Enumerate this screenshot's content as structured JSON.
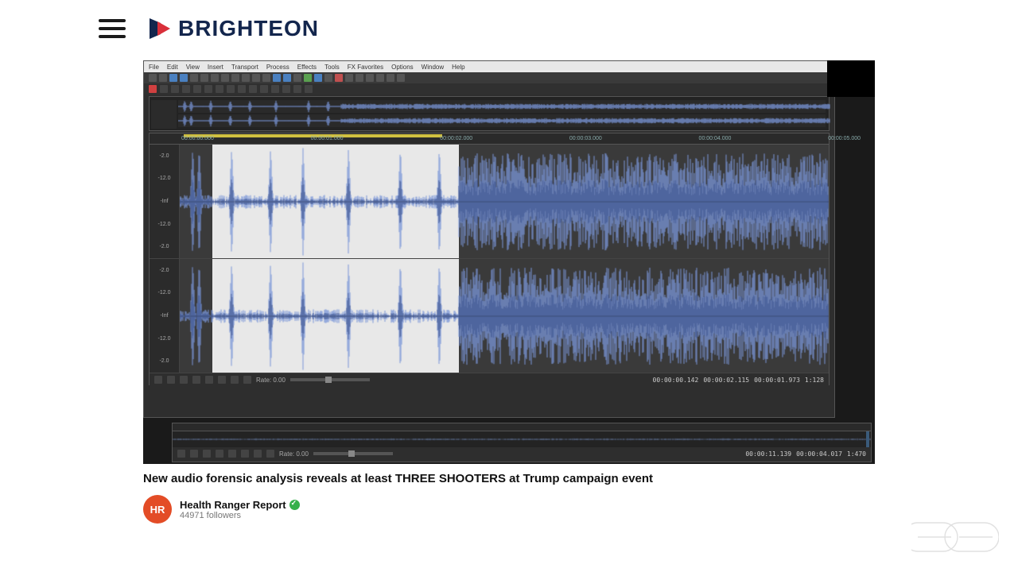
{
  "site": {
    "brand": "BRIGHTEON",
    "brand_color_primary": "#13264d",
    "brand_color_accent": "#d92f3a"
  },
  "video": {
    "title": "New audio forensic analysis reveals at least THREE SHOOTERS at Trump campaign event",
    "channel": {
      "initials": "HR",
      "name": "Health Ranger Report",
      "followers_label": "44971 followers",
      "avatar_color": "#e34c26",
      "verified": true
    }
  },
  "daw": {
    "menu_items": [
      "File",
      "Edit",
      "View",
      "Insert",
      "Transport",
      "Process",
      "Effects",
      "Tools",
      "FX Favorites",
      "Options",
      "Window",
      "Help"
    ],
    "toolbar_colors": [
      "#555",
      "#555",
      "#4a80c0",
      "#4a80c0",
      "#555",
      "#555",
      "#555",
      "#555",
      "#555",
      "#555",
      "#555",
      "#555",
      "#4a80c0",
      "#4a80c0",
      "#555",
      "#5aa050",
      "#4a80c0",
      "#555",
      "#c05050",
      "#555",
      "#555",
      "#555",
      "#555",
      "#555",
      "#555"
    ],
    "transport_colors": [
      "#d04040",
      "#444",
      "#444",
      "#444",
      "#444",
      "#444",
      "#444",
      "#444",
      "#444",
      "#444",
      "#444",
      "#444",
      "#444",
      "#444",
      "#444"
    ],
    "rate_label": "Rate: 0.00",
    "timecodes_upper": [
      "00:00:00.142",
      "00:00:02.115",
      "00:00:01.973",
      "1:128"
    ],
    "timecodes_lower": [
      "00:00:11.139",
      "00:00:04.017",
      "1:470"
    ],
    "ruler": {
      "start": 0.0,
      "end": 5.0,
      "labels": [
        "00:00:00.000",
        "00:00:01.000",
        "00:00:02.000",
        "00:00:03.000",
        "00:00:04.000",
        "00:00:05.000"
      ],
      "selection_start": 0.05,
      "selection_end": 0.43
    },
    "amp_ticks": [
      "-2.0",
      "-12.0",
      "-Inf",
      "-12.0",
      "-2.0"
    ],
    "waveform": {
      "color": "#7a96d8",
      "color_dark": "#3d538c",
      "selection_bg": "#e8e8e8",
      "track_bg": "#3a3a3a",
      "spikes_norm_x": [
        0.02,
        0.03,
        0.08,
        0.14,
        0.19,
        0.26,
        0.34,
        0.4
      ],
      "spike_amp": 0.95,
      "noise_floor": 0.12,
      "loud_region_start": 0.43,
      "loud_region_amp": 0.55,
      "loud_region_variance": 0.3
    },
    "overview": {
      "spikes_norm_x": [
        0.01,
        0.02,
        0.05,
        0.08,
        0.11,
        0.15,
        0.2,
        0.23
      ]
    }
  },
  "colors": {
    "frame_bg": "#1a1a1a",
    "daw_bg": "#2e2e2e",
    "menubar_bg": "#e8e8e8",
    "ruler_sel": "#d0c040"
  }
}
